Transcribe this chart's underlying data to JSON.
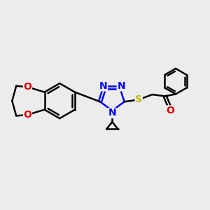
{
  "bg_color": "#ececec",
  "bond_color": "#000000",
  "nitrogen_color": "#0000ee",
  "oxygen_color": "#dd0000",
  "sulfur_color": "#bbbb00",
  "line_width": 1.8,
  "font_size": 10,
  "fig_size": [
    3.0,
    3.0
  ],
  "dpi": 100,
  "xlim": [
    0,
    10
  ],
  "ylim": [
    0,
    10
  ]
}
